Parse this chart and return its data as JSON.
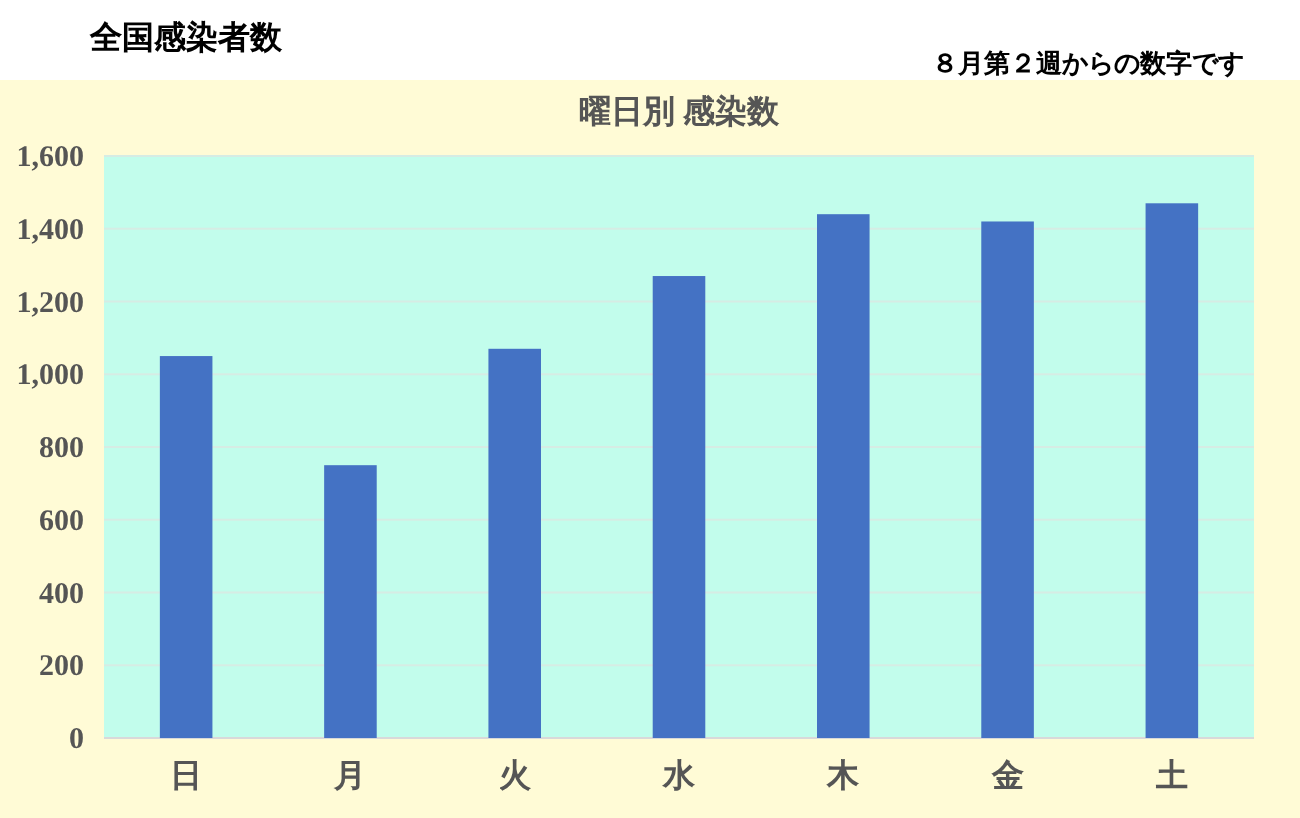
{
  "chart_data": {
    "type": "bar",
    "title": "曜日別 感染数",
    "annotations": [
      "全国感染者数",
      "８月第２週からの数字です"
    ],
    "categories": [
      "日",
      "月",
      "火",
      "水",
      "木",
      "金",
      "土"
    ],
    "series": [
      {
        "color": "#4472c4",
        "values": [
          1050,
          750,
          1070,
          1270,
          1440,
          1420,
          1470
        ]
      }
    ],
    "ylim": [
      0,
      1600
    ],
    "yticks": [
      {
        "value": 0,
        "label": "0"
      },
      {
        "value": 200,
        "label": "200"
      },
      {
        "value": 400,
        "label": "400"
      },
      {
        "value": 600,
        "label": "600"
      },
      {
        "value": 800,
        "label": "800"
      },
      {
        "value": 1000,
        "label": "1,000"
      },
      {
        "value": 1200,
        "label": "1,200"
      },
      {
        "value": 1400,
        "label": "1,400"
      },
      {
        "value": 1600,
        "label": "1,600"
      }
    ],
    "grid": "y"
  }
}
